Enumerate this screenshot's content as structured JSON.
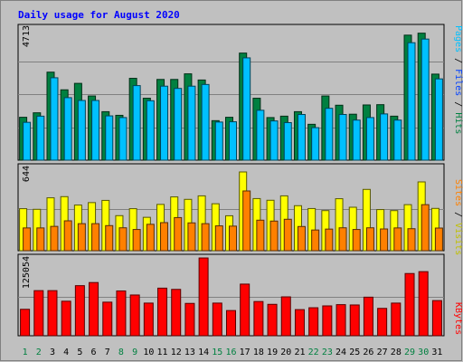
{
  "chart_data": [
    {
      "type": "bar",
      "title": "Daily usage for August 2020",
      "categories": [
        "1",
        "2",
        "3",
        "4",
        "5",
        "6",
        "7",
        "8",
        "9",
        "10",
        "11",
        "12",
        "13",
        "14",
        "15",
        "16",
        "17",
        "18",
        "19",
        "20",
        "21",
        "22",
        "23",
        "24",
        "25",
        "26",
        "27",
        "28",
        "29",
        "30",
        "31"
      ],
      "weekend_days": [
        "1",
        "2",
        "8",
        "9",
        "15",
        "16",
        "22",
        "23",
        "29",
        "30"
      ],
      "ymax_label": "4713",
      "ylim": [
        0,
        4713
      ],
      "legend": [
        "Pages",
        "Files",
        "Hits"
      ],
      "series": [
        {
          "name": "Hits",
          "color": "#008040",
          "values": [
            1530,
            1690,
            3140,
            2510,
            2740,
            2290,
            1730,
            1600,
            2920,
            2210,
            2880,
            2880,
            3080,
            2860,
            1410,
            1530,
            3820,
            2210,
            1520,
            1570,
            1730,
            1280,
            2290,
            1960,
            1640,
            1970,
            1980,
            1570,
            4460,
            4530,
            3070
          ]
        },
        {
          "name": "Files",
          "color": "#00c0ff",
          "values": [
            1350,
            1570,
            2940,
            2230,
            2130,
            2130,
            1580,
            1520,
            2660,
            2120,
            2640,
            2560,
            2640,
            2700,
            1360,
            1370,
            3650,
            1780,
            1400,
            1340,
            1630,
            1160,
            1850,
            1630,
            1430,
            1520,
            1650,
            1430,
            4190,
            4320,
            2900
          ]
        }
      ]
    },
    {
      "type": "bar",
      "categories": [
        "1",
        "2",
        "3",
        "4",
        "5",
        "6",
        "7",
        "8",
        "9",
        "10",
        "11",
        "12",
        "13",
        "14",
        "15",
        "16",
        "17",
        "18",
        "19",
        "20",
        "21",
        "22",
        "23",
        "24",
        "25",
        "26",
        "27",
        "28",
        "29",
        "30",
        "31"
      ],
      "ymax_label": "644",
      "ylim": [
        0,
        644
      ],
      "legend": [
        "Sites",
        "Visits"
      ],
      "series": [
        {
          "name": "Visits",
          "color": "#ffff00",
          "values": [
            325,
            320,
            409,
            418,
            353,
            372,
            389,
            271,
            325,
            258,
            358,
            416,
            397,
            424,
            363,
            270,
            609,
            403,
            390,
            424,
            348,
            326,
            310,
            402,
            336,
            474,
            318,
            310,
            356,
            532,
            327
          ]
        },
        {
          "name": "Sites",
          "color": "#ff8000",
          "values": [
            176,
            176,
            188,
            231,
            209,
            209,
            194,
            177,
            164,
            204,
            217,
            256,
            215,
            209,
            192,
            190,
            462,
            236,
            229,
            243,
            187,
            160,
            167,
            177,
            164,
            177,
            168,
            176,
            170,
            356,
            175
          ]
        }
      ]
    },
    {
      "type": "bar",
      "categories": [
        "1",
        "2",
        "3",
        "4",
        "5",
        "6",
        "7",
        "8",
        "9",
        "10",
        "11",
        "12",
        "13",
        "14",
        "15",
        "16",
        "17",
        "18",
        "19",
        "20",
        "21",
        "22",
        "23",
        "24",
        "25",
        "26",
        "27",
        "28",
        "29",
        "30",
        "31"
      ],
      "ymax_label": "125054",
      "ylim": [
        0,
        125054
      ],
      "legend": [
        "KBytes"
      ],
      "series": [
        {
          "name": "KBytes",
          "color": "#ff0000",
          "values": [
            42500,
            72500,
            72500,
            55500,
            80500,
            85500,
            54000,
            72000,
            65500,
            52500,
            76500,
            74500,
            52000,
            125000,
            52500,
            40500,
            83000,
            55000,
            50500,
            62500,
            42000,
            45000,
            48000,
            50000,
            49500,
            62000,
            44000,
            52500,
            100000,
            103000,
            56500
          ]
        }
      ]
    }
  ]
}
